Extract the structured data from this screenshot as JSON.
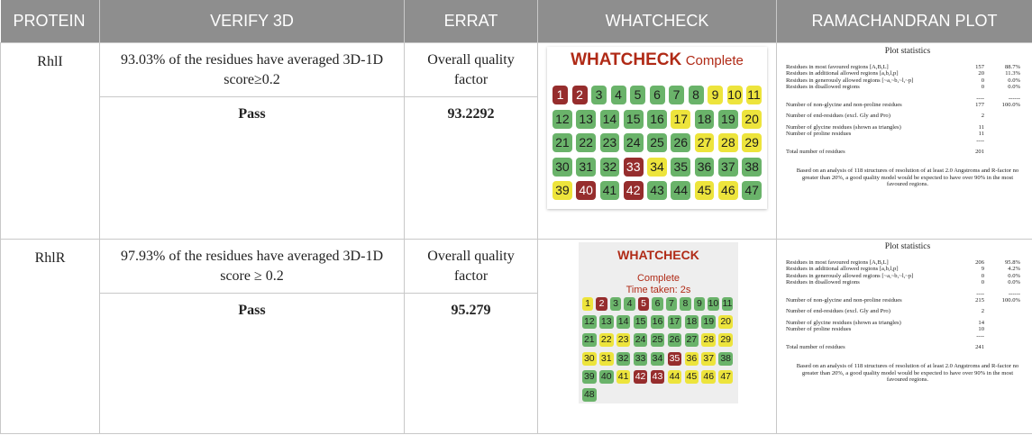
{
  "headers": [
    "PROTEIN",
    "VERIFY 3D",
    "ERRAT",
    "WHATCHECK",
    "RAMACHANDRAN PLOT"
  ],
  "rows": [
    {
      "protein": "RhlI",
      "verify_desc": "93.03% of the residues have averaged 3D-1D score≥0.2",
      "verify_result": "Pass",
      "errat_label": "Overall quality factor",
      "errat_value": "93.2292",
      "whatcheck": {
        "title": "WHATCHECK",
        "status": "Complete",
        "cells": [
          {
            "n": "1",
            "s": "red"
          },
          {
            "n": "2",
            "s": "red"
          },
          {
            "n": "3",
            "s": "green"
          },
          {
            "n": "4",
            "s": "green"
          },
          {
            "n": "5",
            "s": "green"
          },
          {
            "n": "6",
            "s": "green"
          },
          {
            "n": "7",
            "s": "green"
          },
          {
            "n": "8",
            "s": "green"
          },
          {
            "n": "9",
            "s": "yellow"
          },
          {
            "n": "10",
            "s": "yellow"
          },
          {
            "n": "11",
            "s": "yellow"
          },
          {
            "n": "12",
            "s": "green"
          },
          {
            "n": "13",
            "s": "green"
          },
          {
            "n": "14",
            "s": "green"
          },
          {
            "n": "15",
            "s": "green"
          },
          {
            "n": "16",
            "s": "green"
          },
          {
            "n": "17",
            "s": "yellow"
          },
          {
            "n": "18",
            "s": "green"
          },
          {
            "n": "19",
            "s": "green"
          },
          {
            "n": "20",
            "s": "yellow"
          },
          {
            "n": "21",
            "s": "green"
          },
          {
            "n": "22",
            "s": "green"
          },
          {
            "n": "23",
            "s": "green"
          },
          {
            "n": "24",
            "s": "green"
          },
          {
            "n": "25",
            "s": "green"
          },
          {
            "n": "26",
            "s": "green"
          },
          {
            "n": "27",
            "s": "yellow"
          },
          {
            "n": "28",
            "s": "yellow"
          },
          {
            "n": "29",
            "s": "yellow"
          },
          {
            "n": "30",
            "s": "green"
          },
          {
            "n": "31",
            "s": "green"
          },
          {
            "n": "32",
            "s": "green"
          },
          {
            "n": "33",
            "s": "red"
          },
          {
            "n": "34",
            "s": "yellow"
          },
          {
            "n": "35",
            "s": "green"
          },
          {
            "n": "36",
            "s": "green"
          },
          {
            "n": "37",
            "s": "green"
          },
          {
            "n": "38",
            "s": "green"
          },
          {
            "n": "39",
            "s": "yellow"
          },
          {
            "n": "40",
            "s": "red"
          },
          {
            "n": "41",
            "s": "green"
          },
          {
            "n": "42",
            "s": "red"
          },
          {
            "n": "43",
            "s": "green"
          },
          {
            "n": "44",
            "s": "green"
          },
          {
            "n": "45",
            "s": "yellow"
          },
          {
            "n": "46",
            "s": "yellow"
          },
          {
            "n": "47",
            "s": "green"
          }
        ]
      },
      "rama": {
        "title": "Plot statistics",
        "stats": [
          {
            "label": "Residues in most favoured regions  [A,B,L]",
            "n": "157",
            "p": "88.7%"
          },
          {
            "label": "Residues in additional allowed regions  [a,b,l,p]",
            "n": "20",
            "p": "11.3%"
          },
          {
            "label": "Residues in generously allowed regions  [~a,~b,~l,~p]",
            "n": "0",
            "p": "0.0%"
          },
          {
            "label": "Residues in disallowed regions",
            "n": "0",
            "p": "0.0%"
          },
          {
            "label": "",
            "n": "----",
            "p": "------"
          },
          {
            "label": "Number of non-glycine and non-proline residues",
            "n": "177",
            "p": "100.0%"
          },
          {
            "label": "Number of end-residues (excl. Gly and Pro)",
            "n": "2",
            "p": ""
          },
          {
            "label": "Number of glycine residues (shown as triangles)",
            "n": "11",
            "p": ""
          },
          {
            "label": "Number of proline residues",
            "n": "11",
            "p": ""
          },
          {
            "label": "",
            "n": "----",
            "p": ""
          },
          {
            "label": "Total number of residues",
            "n": "201",
            "p": ""
          }
        ],
        "note": "Based on an analysis of 118 structures of resolution of at least 2.0 Angstroms and R-factor no greater than 20%, a good quality model would be expected to have over 90% in the most favoured regions."
      }
    },
    {
      "protein": "RhlR",
      "verify_desc": "97.93% of the residues have averaged 3D-1D score ≥ 0.2",
      "verify_result": "Pass",
      "errat_label": "Overall quality factor",
      "errat_value": "95.279",
      "whatcheck": {
        "title": "WHATCHECK",
        "status": "Complete",
        "time": "Time taken: 2s",
        "cells": [
          {
            "n": "1",
            "s": "yellow"
          },
          {
            "n": "2",
            "s": "red"
          },
          {
            "n": "3",
            "s": "green"
          },
          {
            "n": "4",
            "s": "green"
          },
          {
            "n": "5",
            "s": "red"
          },
          {
            "n": "6",
            "s": "green"
          },
          {
            "n": "7",
            "s": "green"
          },
          {
            "n": "8",
            "s": "green"
          },
          {
            "n": "9",
            "s": "green"
          },
          {
            "n": "10",
            "s": "green"
          },
          {
            "n": "11",
            "s": "green"
          },
          {
            "n": "12",
            "s": "green"
          },
          {
            "n": "13",
            "s": "green"
          },
          {
            "n": "14",
            "s": "green"
          },
          {
            "n": "15",
            "s": "green"
          },
          {
            "n": "16",
            "s": "green"
          },
          {
            "n": "17",
            "s": "green"
          },
          {
            "n": "18",
            "s": "green"
          },
          {
            "n": "19",
            "s": "green"
          },
          {
            "n": "20",
            "s": "yellow"
          },
          {
            "n": "21",
            "s": "green"
          },
          {
            "n": "22",
            "s": "yellow"
          },
          {
            "n": "23",
            "s": "yellow"
          },
          {
            "n": "24",
            "s": "green"
          },
          {
            "n": "25",
            "s": "green"
          },
          {
            "n": "26",
            "s": "green"
          },
          {
            "n": "27",
            "s": "green"
          },
          {
            "n": "28",
            "s": "yellow"
          },
          {
            "n": "29",
            "s": "yellow"
          },
          {
            "n": "30",
            "s": "yellow"
          },
          {
            "n": "31",
            "s": "yellow"
          },
          {
            "n": "32",
            "s": "green"
          },
          {
            "n": "33",
            "s": "green"
          },
          {
            "n": "34",
            "s": "green"
          },
          {
            "n": "35",
            "s": "red"
          },
          {
            "n": "36",
            "s": "yellow"
          },
          {
            "n": "37",
            "s": "yellow"
          },
          {
            "n": "38",
            "s": "green"
          },
          {
            "n": "39",
            "s": "green"
          },
          {
            "n": "40",
            "s": "green"
          },
          {
            "n": "41",
            "s": "yellow"
          },
          {
            "n": "42",
            "s": "red"
          },
          {
            "n": "43",
            "s": "red"
          },
          {
            "n": "44",
            "s": "yellow"
          },
          {
            "n": "45",
            "s": "yellow"
          },
          {
            "n": "46",
            "s": "yellow"
          },
          {
            "n": "47",
            "s": "yellow"
          },
          {
            "n": "48",
            "s": "green"
          }
        ]
      },
      "rama": {
        "title": "Plot statistics",
        "stats": [
          {
            "label": "Residues in most favoured regions  [A,B,L]",
            "n": "206",
            "p": "95.8%"
          },
          {
            "label": "Residues in additional allowed regions  [a,b,l,p]",
            "n": "9",
            "p": "4.2%"
          },
          {
            "label": "Residues in generously allowed regions  [~a,~b,~l,~p]",
            "n": "0",
            "p": "0.0%"
          },
          {
            "label": "Residues in disallowed regions",
            "n": "0",
            "p": "0.0%"
          },
          {
            "label": "",
            "n": "----",
            "p": "------"
          },
          {
            "label": "Number of non-glycine and non-proline residues",
            "n": "215",
            "p": "100.0%"
          },
          {
            "label": "Number of end-residues (excl. Gly and Pro)",
            "n": "2",
            "p": ""
          },
          {
            "label": "Number of glycine residues (shown as triangles)",
            "n": "14",
            "p": ""
          },
          {
            "label": "Number of proline residues",
            "n": "10",
            "p": ""
          },
          {
            "label": "",
            "n": "----",
            "p": ""
          },
          {
            "label": "Total number of residues",
            "n": "241",
            "p": ""
          }
        ],
        "note": "Based on an analysis of 118 structures of resolution of at least 2.0 Angstroms and R-factor no greater than 20%, a good quality model would be expected to have over 90% in the most favoured regions."
      }
    }
  ],
  "colors": {
    "header_bg": "#8e8e8e",
    "green": "#6ab36a",
    "yellow": "#ede43c",
    "red": "#962d2d",
    "whatcheck_title": "#b02a16"
  }
}
